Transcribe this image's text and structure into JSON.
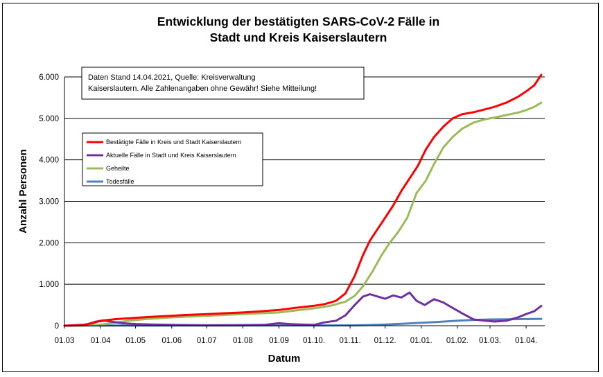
{
  "chart_data": {
    "type": "line",
    "title": "Entwicklung der bestätigten SARS-CoV-2 Fälle in\nStadt und Kreis Kaiserslautern",
    "xlabel": "Datum",
    "ylabel": "Anzahl Personen",
    "xlim": [
      "2020-03-01",
      "2021-04-17"
    ],
    "ylim": [
      0,
      6000
    ],
    "grid": "horizontal",
    "legend_position": "upper-left",
    "x_ticks": [
      {
        "date": "2020-03-01",
        "label": "01.03"
      },
      {
        "date": "2020-04-01",
        "label": "01.04"
      },
      {
        "date": "2020-05-01",
        "label": "01.05"
      },
      {
        "date": "2020-06-01",
        "label": "01.06"
      },
      {
        "date": "2020-07-01",
        "label": "01.07"
      },
      {
        "date": "2020-08-01",
        "label": "01.08"
      },
      {
        "date": "2020-09-01",
        "label": "01.09"
      },
      {
        "date": "2020-10-01",
        "label": "01.10."
      },
      {
        "date": "2020-11-01",
        "label": "01.11."
      },
      {
        "date": "2020-12-01",
        "label": "01.12."
      },
      {
        "date": "2021-01-01",
        "label": "01.01."
      },
      {
        "date": "2021-02-01",
        "label": "01.02."
      },
      {
        "date": "2021-03-01",
        "label": "01.03."
      },
      {
        "date": "2021-04-01",
        "label": "01.04."
      }
    ],
    "y_ticks": [
      {
        "value": 0,
        "label": "0"
      },
      {
        "value": 1000,
        "label": "1.000"
      },
      {
        "value": 2000,
        "label": "2.000"
      },
      {
        "value": 3000,
        "label": "3.000"
      },
      {
        "value": 4000,
        "label": "4.000"
      },
      {
        "value": 5000,
        "label": "5.000"
      },
      {
        "value": 6000,
        "label": "6.000"
      }
    ],
    "annotation": "Daten Stand 14.04.2021, Quelle: Kreisverwaltung\nKaiserslautern. Alle Zahlenangaben ohne Gewähr! Siehe Mitteilung!",
    "series": [
      {
        "name": "Bestätigte Fälle in Kreis und Stadt Kaiserslautern",
        "color": "#ff0000",
        "points": [
          [
            "2020-03-01",
            0
          ],
          [
            "2020-03-15",
            10
          ],
          [
            "2020-03-25",
            60
          ],
          [
            "2020-04-01",
            120
          ],
          [
            "2020-04-15",
            160
          ],
          [
            "2020-05-01",
            190
          ],
          [
            "2020-05-15",
            215
          ],
          [
            "2020-06-01",
            240
          ],
          [
            "2020-06-15",
            260
          ],
          [
            "2020-07-01",
            280
          ],
          [
            "2020-07-15",
            300
          ],
          [
            "2020-08-01",
            320
          ],
          [
            "2020-08-15",
            345
          ],
          [
            "2020-09-01",
            380
          ],
          [
            "2020-09-15",
            430
          ],
          [
            "2020-10-01",
            480
          ],
          [
            "2020-10-10",
            520
          ],
          [
            "2020-10-20",
            600
          ],
          [
            "2020-10-28",
            780
          ],
          [
            "2020-11-05",
            1200
          ],
          [
            "2020-11-12",
            1700
          ],
          [
            "2020-11-18",
            2050
          ],
          [
            "2020-11-25",
            2350
          ],
          [
            "2020-12-01",
            2600
          ],
          [
            "2020-12-08",
            2900
          ],
          [
            "2020-12-15",
            3250
          ],
          [
            "2020-12-22",
            3550
          ],
          [
            "2020-12-29",
            3850
          ],
          [
            "2021-01-05",
            4250
          ],
          [
            "2021-01-12",
            4550
          ],
          [
            "2021-01-20",
            4800
          ],
          [
            "2021-01-28",
            5000
          ],
          [
            "2021-02-05",
            5100
          ],
          [
            "2021-02-15",
            5150
          ],
          [
            "2021-02-25",
            5220
          ],
          [
            "2021-03-05",
            5280
          ],
          [
            "2021-03-15",
            5380
          ],
          [
            "2021-03-25",
            5520
          ],
          [
            "2021-04-01",
            5650
          ],
          [
            "2021-04-08",
            5800
          ],
          [
            "2021-04-14",
            6050
          ]
        ]
      },
      {
        "name": "Aktuelle Fälle in Stadt und Kreis Kaiserslautern",
        "color": "#7030a0",
        "points": [
          [
            "2020-03-01",
            0
          ],
          [
            "2020-03-20",
            30
          ],
          [
            "2020-03-28",
            100
          ],
          [
            "2020-04-05",
            120
          ],
          [
            "2020-04-12",
            90
          ],
          [
            "2020-04-20",
            60
          ],
          [
            "2020-05-01",
            40
          ],
          [
            "2020-05-15",
            30
          ],
          [
            "2020-06-01",
            20
          ],
          [
            "2020-07-01",
            10
          ],
          [
            "2020-08-01",
            15
          ],
          [
            "2020-08-20",
            20
          ],
          [
            "2020-09-01",
            60
          ],
          [
            "2020-09-10",
            40
          ],
          [
            "2020-09-20",
            30
          ],
          [
            "2020-10-01",
            20
          ],
          [
            "2020-10-10",
            80
          ],
          [
            "2020-10-20",
            120
          ],
          [
            "2020-10-28",
            250
          ],
          [
            "2020-11-05",
            500
          ],
          [
            "2020-11-12",
            700
          ],
          [
            "2020-11-18",
            760
          ],
          [
            "2020-11-25",
            700
          ],
          [
            "2020-12-01",
            650
          ],
          [
            "2020-12-08",
            730
          ],
          [
            "2020-12-15",
            680
          ],
          [
            "2020-12-22",
            800
          ],
          [
            "2020-12-28",
            600
          ],
          [
            "2021-01-04",
            500
          ],
          [
            "2021-01-12",
            640
          ],
          [
            "2021-01-20",
            560
          ],
          [
            "2021-01-28",
            430
          ],
          [
            "2021-02-05",
            300
          ],
          [
            "2021-02-15",
            150
          ],
          [
            "2021-02-25",
            120
          ],
          [
            "2021-03-05",
            100
          ],
          [
            "2021-03-15",
            120
          ],
          [
            "2021-03-25",
            200
          ],
          [
            "2021-04-01",
            280
          ],
          [
            "2021-04-08",
            350
          ],
          [
            "2021-04-14",
            480
          ]
        ]
      },
      {
        "name": "Geheilte",
        "color": "#9bbb59",
        "points": [
          [
            "2020-03-01",
            0
          ],
          [
            "2020-03-28",
            10
          ],
          [
            "2020-04-10",
            60
          ],
          [
            "2020-04-25",
            120
          ],
          [
            "2020-05-10",
            160
          ],
          [
            "2020-06-01",
            200
          ],
          [
            "2020-07-01",
            240
          ],
          [
            "2020-08-01",
            280
          ],
          [
            "2020-09-01",
            320
          ],
          [
            "2020-10-01",
            420
          ],
          [
            "2020-10-15",
            480
          ],
          [
            "2020-10-28",
            580
          ],
          [
            "2020-11-05",
            720
          ],
          [
            "2020-11-12",
            950
          ],
          [
            "2020-11-20",
            1300
          ],
          [
            "2020-11-28",
            1700
          ],
          [
            "2020-12-05",
            2000
          ],
          [
            "2020-12-12",
            2250
          ],
          [
            "2020-12-20",
            2600
          ],
          [
            "2020-12-28",
            3200
          ],
          [
            "2021-01-05",
            3500
          ],
          [
            "2021-01-12",
            3900
          ],
          [
            "2021-01-20",
            4300
          ],
          [
            "2021-01-28",
            4550
          ],
          [
            "2021-02-05",
            4750
          ],
          [
            "2021-02-15",
            4900
          ],
          [
            "2021-02-25",
            4980
          ],
          [
            "2021-03-05",
            5020
          ],
          [
            "2021-03-15",
            5080
          ],
          [
            "2021-03-25",
            5140
          ],
          [
            "2021-04-01",
            5200
          ],
          [
            "2021-04-08",
            5280
          ],
          [
            "2021-04-14",
            5380
          ]
        ]
      },
      {
        "name": "Todesfälle",
        "color": "#4f81bd",
        "points": [
          [
            "2020-03-01",
            0
          ],
          [
            "2020-04-15",
            3
          ],
          [
            "2020-06-01",
            5
          ],
          [
            "2020-08-01",
            5
          ],
          [
            "2020-10-01",
            6
          ],
          [
            "2020-11-01",
            8
          ],
          [
            "2020-11-15",
            15
          ],
          [
            "2020-12-01",
            30
          ],
          [
            "2020-12-15",
            45
          ],
          [
            "2021-01-01",
            70
          ],
          [
            "2021-01-15",
            90
          ],
          [
            "2021-02-01",
            120
          ],
          [
            "2021-02-15",
            140
          ],
          [
            "2021-03-01",
            150
          ],
          [
            "2021-03-15",
            155
          ],
          [
            "2021-04-01",
            160
          ],
          [
            "2021-04-14",
            165
          ]
        ]
      }
    ]
  }
}
